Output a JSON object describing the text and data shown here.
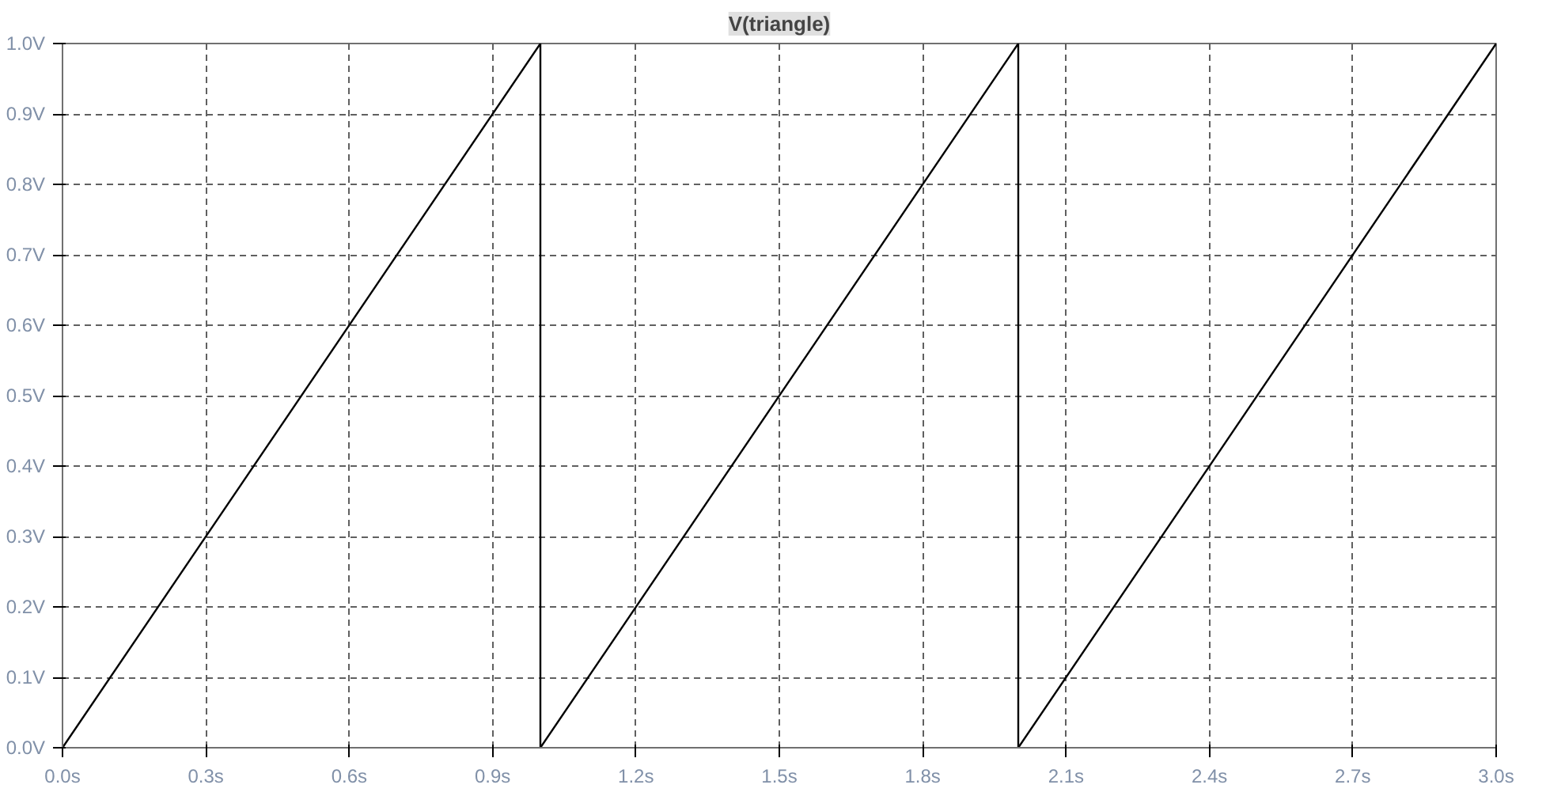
{
  "chart_data": {
    "type": "line",
    "title": "V(triangle)",
    "x": [
      0,
      1,
      1,
      2,
      2,
      3
    ],
    "series": [
      {
        "color": "#000000",
        "values": [
          0,
          1,
          0,
          1,
          0,
          1
        ]
      }
    ],
    "xlim": [
      0,
      3
    ],
    "ylim": [
      0,
      1
    ],
    "xticks": [
      {
        "value": 0,
        "label": "0.0s"
      },
      {
        "value": 0.3,
        "label": "0.3s"
      },
      {
        "value": 0.6,
        "label": "0.6s"
      },
      {
        "value": 0.9,
        "label": "0.9s"
      },
      {
        "value": 1.2,
        "label": "1.2s"
      },
      {
        "value": 1.5,
        "label": "1.5s"
      },
      {
        "value": 1.8,
        "label": "1.8s"
      },
      {
        "value": 2.1,
        "label": "2.1s"
      },
      {
        "value": 2.4,
        "label": "2.4s"
      },
      {
        "value": 2.7,
        "label": "2.7s"
      },
      {
        "value": 3.0,
        "label": "3.0s"
      }
    ],
    "yticks": [
      {
        "value": 0,
        "label": "0.0V"
      },
      {
        "value": 0.1,
        "label": "0.1V"
      },
      {
        "value": 0.2,
        "label": "0.2V"
      },
      {
        "value": 0.3,
        "label": "0.3V"
      },
      {
        "value": 0.4,
        "label": "0.4V"
      },
      {
        "value": 0.5,
        "label": "0.5V"
      },
      {
        "value": 0.6,
        "label": "0.6V"
      },
      {
        "value": 0.7,
        "label": "0.7V"
      },
      {
        "value": 0.8,
        "label": "0.8V"
      },
      {
        "value": 0.9,
        "label": "0.9V"
      },
      {
        "value": 1.0,
        "label": "1.0V"
      }
    ],
    "grid": true,
    "line_style": "solid"
  }
}
